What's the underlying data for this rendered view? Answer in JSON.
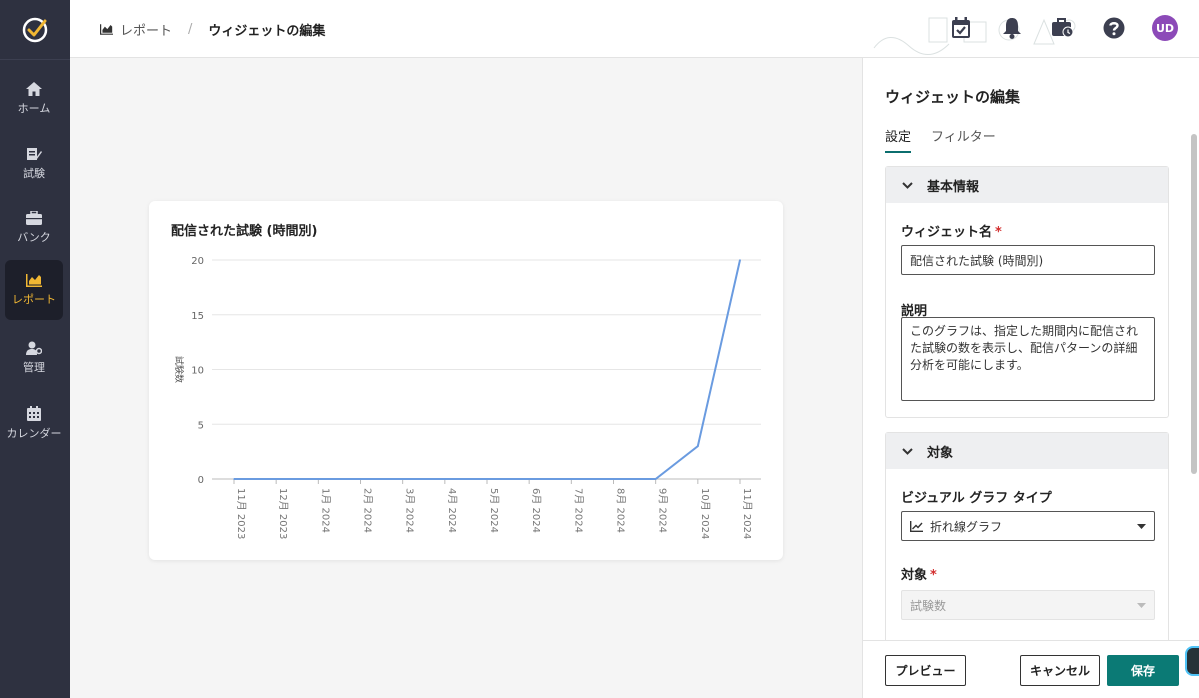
{
  "sidebar": {
    "items": [
      {
        "label": "ホーム",
        "icon": "home-icon"
      },
      {
        "label": "試験",
        "icon": "exam-icon"
      },
      {
        "label": "バンク",
        "icon": "bank-icon"
      },
      {
        "label": "レポート",
        "icon": "report-icon",
        "active": true
      },
      {
        "label": "管理",
        "icon": "admin-icon"
      },
      {
        "label": "カレンダー",
        "icon": "calendar-icon"
      }
    ]
  },
  "header": {
    "breadcrumb": {
      "parent": "レポート",
      "current": "ウィジェットの編集"
    },
    "avatar_initials": "UD"
  },
  "chart_data": {
    "type": "line",
    "title": "配信された試験 (時間別)",
    "ylabel": "試験数",
    "xlabel": "",
    "categories": [
      "11月 2023",
      "12月 2023",
      "1月 2024",
      "2月 2024",
      "3月 2024",
      "4月 2024",
      "5月 2024",
      "6月 2024",
      "7月 2024",
      "8月 2024",
      "9月 2024",
      "10月 2024",
      "11月 2024"
    ],
    "values": [
      0,
      0,
      0,
      0,
      0,
      0,
      0,
      0,
      0,
      0,
      0,
      3,
      20
    ],
    "yticks": [
      0,
      5,
      10,
      15,
      20
    ],
    "ylim": [
      0,
      20
    ],
    "line_color": "#6a9be0",
    "grid": true
  },
  "panel": {
    "title": "ウィジェットの編集",
    "tabs": [
      {
        "label": "設定",
        "active": true
      },
      {
        "label": "フィルター",
        "active": false
      }
    ],
    "basic_section": {
      "title": "基本情報",
      "name_label": "ウィジェット名",
      "name_value": "配信された試験 (時間別)",
      "desc_label": "説明",
      "desc_value": "このグラフは、指定した期間内に配信された試験の数を表示し、配信パターンの詳細分析を可能にします。"
    },
    "target_section": {
      "title": "対象",
      "chart_type_label": "ビジュアル グラフ タイプ",
      "chart_type_value": "折れ線グラフ",
      "target_label": "対象",
      "target_value": "試験数"
    },
    "buttons": {
      "preview": "プレビュー",
      "cancel": "キャンセル",
      "save": "保存"
    }
  },
  "colors": {
    "sidebar": "#2e3140",
    "accent": "#f1b733",
    "primary": "#0b7a75",
    "avatar": "#8c4ab8"
  }
}
